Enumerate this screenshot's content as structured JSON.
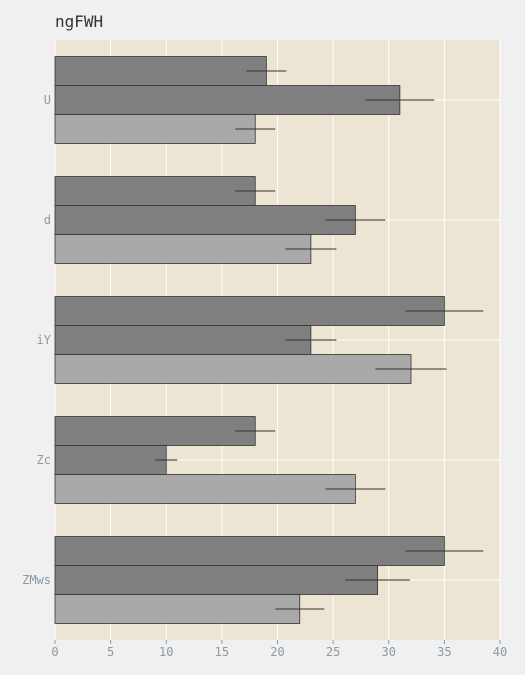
{
  "chart_data": {
    "type": "bar",
    "orientation": "horizontal",
    "title": "ngFWH",
    "xlabel": "",
    "ylabel": "",
    "categories": [
      "U",
      "d",
      "iY",
      "Zc",
      "ZMws"
    ],
    "series": [
      {
        "values": [
          19,
          18,
          35,
          18,
          35
        ],
        "errors": [
          1.8,
          1.8,
          3.5,
          1.8,
          3.5
        ],
        "color": "#7f7f7f"
      },
      {
        "values": [
          31,
          27,
          23,
          10,
          29
        ],
        "errors": [
          3.1,
          2.7,
          2.3,
          1.0,
          2.9
        ],
        "color": "#7f7f7f"
      },
      {
        "values": [
          18,
          23,
          32,
          27,
          22
        ],
        "errors": [
          1.8,
          2.3,
          3.2,
          2.7,
          2.2
        ],
        "color": "#a9a9a9"
      }
    ],
    "xlim": [
      0,
      40
    ],
    "xticks": [
      0,
      5,
      10,
      15,
      20,
      25,
      30,
      35,
      40
    ],
    "grid": true,
    "legend": "none",
    "colors": {
      "plot_background": "#ede5d4",
      "page_background": "#f0f0f0",
      "error_bar": "#333333",
      "grid": "#ffffff"
    }
  }
}
